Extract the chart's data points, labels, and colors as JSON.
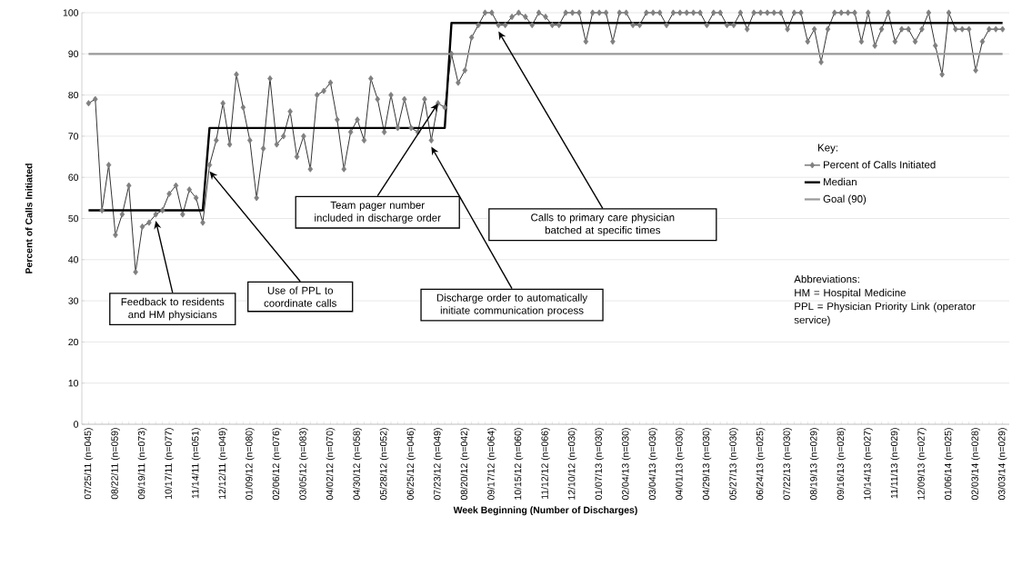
{
  "chart_data": {
    "type": "line",
    "xlabel": "Week Beginning (Number of Discharges)",
    "ylabel": "Percent of Calls Initiated",
    "legend_title": "Key:",
    "categories": [
      "07/25/11 (n=045)",
      null,
      null,
      null,
      "08/22/11 (n=059)",
      null,
      null,
      null,
      "09/19/11 (n=073)",
      null,
      null,
      null,
      "10/17/11 (n=077)",
      null,
      null,
      null,
      "11/14/11 (n=051)",
      null,
      null,
      null,
      "12/12/11 (n=049)",
      null,
      null,
      null,
      "01/09/12 (n=080)",
      null,
      null,
      null,
      "02/06/12 (n=076)",
      null,
      null,
      null,
      "03/05/12 (n=083)",
      null,
      null,
      null,
      "04/02/12 (n=070)",
      null,
      null,
      null,
      "04/30/12 (n=058)",
      null,
      null,
      null,
      "05/28/12 (n=052)",
      null,
      null,
      null,
      "06/25/12 (n=046)",
      null,
      null,
      null,
      "07/23/12 (n=049)",
      null,
      null,
      null,
      "08/20/12 (n=042)",
      null,
      null,
      null,
      "09/17/12 (n=064)",
      null,
      null,
      null,
      "10/15/12 (n=060)",
      null,
      null,
      null,
      "11/12/12 (n=066)",
      null,
      null,
      null,
      "12/10/12 (n=030)",
      null,
      null,
      null,
      "01/07/13 (n=030)",
      null,
      null,
      null,
      "02/04/13 (n=030)",
      null,
      null,
      null,
      "03/04/13 (n=030)",
      null,
      null,
      null,
      "04/01/13 (n=030)",
      null,
      null,
      null,
      "04/29/13 (n=030)",
      null,
      null,
      null,
      "05/27/13 (n=030)",
      null,
      null,
      null,
      "06/24/13 (n=025)",
      null,
      null,
      null,
      "07/22/13 (n=030)",
      null,
      null,
      null,
      "08/19/13 (n=029)",
      null,
      null,
      null,
      "09/16/13 (n=028)",
      null,
      null,
      null,
      "10/14/13 (n=027)",
      null,
      null,
      null,
      "11/11/13 (n=029)",
      null,
      null,
      null,
      "12/09/13 (n=027)",
      null,
      null,
      null,
      "01/06/14 (n=025)",
      null,
      null,
      null,
      "02/03/14 (n=028)",
      null,
      null,
      null,
      "03/03/14 (n=029)"
    ],
    "series": [
      {
        "name": "Percent of Calls Initiated",
        "color": "#7f7f7f",
        "values": [
          78,
          79,
          52,
          63,
          46,
          51,
          58,
          37,
          48,
          49,
          51,
          52,
          56,
          58,
          51,
          57,
          55,
          49,
          63,
          69,
          78,
          68,
          85,
          77,
          69,
          55,
          67,
          84,
          68,
          70,
          76,
          65,
          70,
          62,
          80,
          81,
          83,
          74,
          62,
          71,
          74,
          69,
          84,
          79,
          71,
          80,
          72,
          79,
          72,
          71,
          79,
          69,
          78,
          77,
          90,
          83,
          86,
          94,
          97,
          100,
          100,
          97,
          97,
          99,
          100,
          99,
          97,
          100,
          99,
          97,
          97,
          100,
          100,
          100,
          93,
          100,
          100,
          100,
          93,
          100,
          100,
          97,
          97,
          100,
          100,
          100,
          97,
          100,
          100,
          100,
          100,
          100,
          97,
          100,
          100,
          97,
          97,
          100,
          96,
          100,
          100,
          100,
          100,
          100,
          96,
          100,
          100,
          93,
          96,
          88,
          96,
          100,
          100,
          100,
          100,
          93,
          100,
          92,
          96,
          100,
          93,
          96,
          96,
          93,
          96,
          100,
          92,
          85,
          100,
          96,
          96,
          96,
          86,
          93,
          96,
          96,
          96
        ]
      },
      {
        "name": "Median",
        "color": "#000000",
        "marker": "none",
        "values": [
          52,
          52,
          52,
          52,
          52,
          52,
          52,
          52,
          52,
          52,
          52,
          52,
          52,
          52,
          52,
          52,
          52,
          52,
          72,
          72,
          72,
          72,
          72,
          72,
          72,
          72,
          72,
          72,
          72,
          72,
          72,
          72,
          72,
          72,
          72,
          72,
          72,
          72,
          72,
          72,
          72,
          72,
          72,
          72,
          72,
          72,
          72,
          72,
          72,
          72,
          72,
          72,
          72,
          72,
          97.5,
          97.5,
          97.5,
          97.5,
          97.5,
          97.5,
          97.5,
          97.5,
          97.5,
          97.5,
          97.5,
          97.5,
          97.5,
          97.5,
          97.5,
          97.5,
          97.5,
          97.5,
          97.5,
          97.5,
          97.5,
          97.5,
          97.5,
          97.5,
          97.5,
          97.5,
          97.5,
          97.5,
          97.5,
          97.5,
          97.5,
          97.5,
          97.5,
          97.5,
          97.5,
          97.5,
          97.5,
          97.5,
          97.5,
          97.5,
          97.5,
          97.5,
          97.5,
          97.5,
          97.5,
          97.5,
          97.5,
          97.5,
          97.5,
          97.5,
          97.5,
          97.5,
          97.5,
          97.5,
          97.5,
          97.5,
          97.5,
          97.5,
          97.5,
          97.5,
          97.5,
          97.5,
          97.5,
          97.5,
          97.5,
          97.5,
          97.5,
          97.5,
          97.5,
          97.5,
          97.5,
          97.5,
          97.5,
          97.5,
          97.5,
          97.5,
          97.5,
          97.5,
          97.5,
          97.5,
          97.5,
          97.5,
          97.5
        ]
      },
      {
        "name": "Goal (90)",
        "color": "#999999",
        "marker": "none",
        "values": [
          90,
          90,
          90,
          90,
          90,
          90,
          90,
          90,
          90,
          90,
          90,
          90,
          90,
          90,
          90,
          90,
          90,
          90,
          90,
          90,
          90,
          90,
          90,
          90,
          90,
          90,
          90,
          90,
          90,
          90,
          90,
          90,
          90,
          90,
          90,
          90,
          90,
          90,
          90,
          90,
          90,
          90,
          90,
          90,
          90,
          90,
          90,
          90,
          90,
          90,
          90,
          90,
          90,
          90,
          90,
          90,
          90,
          90,
          90,
          90,
          90,
          90,
          90,
          90,
          90,
          90,
          90,
          90,
          90,
          90,
          90,
          90,
          90,
          90,
          90,
          90,
          90,
          90,
          90,
          90,
          90,
          90,
          90,
          90,
          90,
          90,
          90,
          90,
          90,
          90,
          90,
          90,
          90,
          90,
          90,
          90,
          90,
          90,
          90,
          90,
          90,
          90,
          90,
          90,
          90,
          90,
          90,
          90,
          90,
          90,
          90,
          90,
          90,
          90,
          90,
          90,
          90,
          90,
          90,
          90,
          90,
          90,
          90,
          90,
          90,
          90,
          90,
          90,
          90,
          90,
          90,
          90,
          90,
          90,
          90,
          90,
          90
        ]
      }
    ],
    "ylim": [
      0,
      100
    ],
    "yticks": [
      0,
      10,
      20,
      30,
      40,
      50,
      60,
      70,
      80,
      90,
      100
    ],
    "grid": "y",
    "legend": "right",
    "marker": "diamond",
    "line_style": "solid",
    "annotations": [
      "Feedback to residents and HM physicians",
      "Use of PPL to coordinate calls",
      {
        "text": "Team pager number included in discharge order",
        "x": "07/23/12 (n=049)",
        "y": 78
      },
      "Discharge order to automatically initiate communication process",
      "Calls to primary care physician batched at specific times",
      "Abbreviations:",
      "HM = Hospital Medicine",
      "PPL = Physician Priority Link (operator service)"
    ]
  }
}
